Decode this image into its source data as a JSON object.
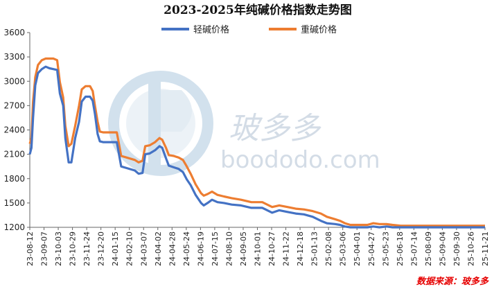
{
  "chart_data": {
    "type": "line",
    "title": "2023-2025年纯碱价格指数走势图",
    "ylim": [
      1200,
      3600
    ],
    "yticks": [
      1200,
      1500,
      1800,
      2100,
      2400,
      2700,
      3000,
      3300,
      3600
    ],
    "x_tick_labels": [
      "23-08-12",
      "23-09-07",
      "23-10-03",
      "23-10-29",
      "23-11-24",
      "23-12-20",
      "24-01-15",
      "24-02-10",
      "24-03-07",
      "24-04-02",
      "24-04-28",
      "24-05-24",
      "24-06-19",
      "24-07-15",
      "24-08-10",
      "24-09-05",
      "24-10-01",
      "24-10-27",
      "24-11-22",
      "24-12-18",
      "25-01-13",
      "25-02-08",
      "25-03-06",
      "25-04-01",
      "25-04-27",
      "25-05-23",
      "25-06-18",
      "25-07-14",
      "25-08-09",
      "25-09-04",
      "25-09-30",
      "25-10-26",
      "25-11-21"
    ],
    "x_tick_step_days": 26,
    "x_start": "2023-08-12",
    "x_end": "2025-11-21",
    "legend_position": "top-center",
    "grid": false,
    "series": [
      {
        "name": "轻碱价格",
        "color": "#4472c4",
        "points": [
          [
            "2023-08-12",
            2100
          ],
          [
            "2023-08-15",
            2180
          ],
          [
            "2023-08-18",
            2550
          ],
          [
            "2023-08-22",
            2950
          ],
          [
            "2023-08-27",
            3100
          ],
          [
            "2023-09-03",
            3150
          ],
          [
            "2023-09-10",
            3180
          ],
          [
            "2023-09-17",
            3160
          ],
          [
            "2023-09-24",
            3150
          ],
          [
            "2023-10-01",
            3140
          ],
          [
            "2023-10-06",
            2850
          ],
          [
            "2023-10-12",
            2700
          ],
          [
            "2023-10-16",
            2300
          ],
          [
            "2023-10-22",
            2000
          ],
          [
            "2023-10-27",
            2000
          ],
          [
            "2023-11-03",
            2300
          ],
          [
            "2023-11-10",
            2500
          ],
          [
            "2023-11-15",
            2750
          ],
          [
            "2023-11-22",
            2810
          ],
          [
            "2023-11-30",
            2810
          ],
          [
            "2023-12-05",
            2760
          ],
          [
            "2023-12-09",
            2600
          ],
          [
            "2023-12-14",
            2350
          ],
          [
            "2023-12-18",
            2260
          ],
          [
            "2023-12-24",
            2250
          ],
          [
            "2024-01-05",
            2250
          ],
          [
            "2024-01-18",
            2250
          ],
          [
            "2024-01-26",
            1950
          ],
          [
            "2024-02-05",
            1930
          ],
          [
            "2024-02-20",
            1900
          ],
          [
            "2024-02-27",
            1860
          ],
          [
            "2024-03-05",
            1870
          ],
          [
            "2024-03-10",
            2100
          ],
          [
            "2024-03-18",
            2110
          ],
          [
            "2024-03-28",
            2150
          ],
          [
            "2024-04-05",
            2200
          ],
          [
            "2024-04-10",
            2180
          ],
          [
            "2024-04-17",
            2050
          ],
          [
            "2024-04-22",
            1960
          ],
          [
            "2024-05-01",
            1940
          ],
          [
            "2024-05-10",
            1920
          ],
          [
            "2024-05-18",
            1880
          ],
          [
            "2024-05-25",
            1790
          ],
          [
            "2024-06-01",
            1720
          ],
          [
            "2024-06-10",
            1600
          ],
          [
            "2024-06-20",
            1500
          ],
          [
            "2024-06-25",
            1470
          ],
          [
            "2024-07-02",
            1500
          ],
          [
            "2024-07-10",
            1540
          ],
          [
            "2024-07-20",
            1510
          ],
          [
            "2024-08-01",
            1500
          ],
          [
            "2024-08-15",
            1480
          ],
          [
            "2024-09-01",
            1470
          ],
          [
            "2024-09-20",
            1440
          ],
          [
            "2024-10-10",
            1440
          ],
          [
            "2024-10-28",
            1380
          ],
          [
            "2024-11-10",
            1410
          ],
          [
            "2024-11-25",
            1390
          ],
          [
            "2024-12-10",
            1370
          ],
          [
            "2024-12-25",
            1360
          ],
          [
            "2025-01-10",
            1330
          ],
          [
            "2025-01-25",
            1280
          ],
          [
            "2025-02-05",
            1250
          ],
          [
            "2025-02-20",
            1240
          ],
          [
            "2025-03-01",
            1230
          ],
          [
            "2025-03-10",
            1210
          ],
          [
            "2025-03-20",
            1200
          ],
          [
            "2025-04-05",
            1200
          ],
          [
            "2025-04-20",
            1200
          ],
          [
            "2025-05-01",
            1210
          ],
          [
            "2025-05-12",
            1200
          ],
          [
            "2025-05-25",
            1210
          ],
          [
            "2025-06-05",
            1200
          ],
          [
            "2025-06-20",
            1200
          ],
          [
            "2025-07-01",
            1200
          ],
          [
            "2025-07-10",
            1200
          ],
          [
            "2025-07-20",
            1200
          ],
          [
            "2025-08-01",
            1200
          ],
          [
            "2025-08-15",
            1200
          ],
          [
            "2025-09-01",
            1200
          ],
          [
            "2025-09-15",
            1200
          ],
          [
            "2025-10-01",
            1200
          ],
          [
            "2025-10-20",
            1200
          ],
          [
            "2025-11-05",
            1200
          ],
          [
            "2025-11-21",
            1200
          ]
        ]
      },
      {
        "name": "重碱价格",
        "color": "#ed7d31",
        "points": [
          [
            "2023-08-12",
            2230
          ],
          [
            "2023-08-15",
            2300
          ],
          [
            "2023-08-18",
            2750
          ],
          [
            "2023-08-22",
            3050
          ],
          [
            "2023-08-27",
            3200
          ],
          [
            "2023-09-03",
            3260
          ],
          [
            "2023-09-10",
            3280
          ],
          [
            "2023-09-17",
            3280
          ],
          [
            "2023-09-24",
            3280
          ],
          [
            "2023-10-01",
            3260
          ],
          [
            "2023-10-06",
            2990
          ],
          [
            "2023-10-12",
            2800
          ],
          [
            "2023-10-16",
            2450
          ],
          [
            "2023-10-22",
            2200
          ],
          [
            "2023-10-27",
            2230
          ],
          [
            "2023-11-03",
            2450
          ],
          [
            "2023-11-10",
            2700
          ],
          [
            "2023-11-15",
            2900
          ],
          [
            "2023-11-22",
            2940
          ],
          [
            "2023-11-30",
            2940
          ],
          [
            "2023-12-05",
            2880
          ],
          [
            "2023-12-09",
            2700
          ],
          [
            "2023-12-14",
            2500
          ],
          [
            "2023-12-18",
            2380
          ],
          [
            "2023-12-24",
            2370
          ],
          [
            "2024-01-05",
            2370
          ],
          [
            "2024-01-18",
            2370
          ],
          [
            "2024-01-26",
            2080
          ],
          [
            "2024-02-05",
            2060
          ],
          [
            "2024-02-20",
            2030
          ],
          [
            "2024-02-27",
            2000
          ],
          [
            "2024-03-05",
            2020
          ],
          [
            "2024-03-10",
            2200
          ],
          [
            "2024-03-18",
            2210
          ],
          [
            "2024-03-28",
            2250
          ],
          [
            "2024-04-05",
            2300
          ],
          [
            "2024-04-10",
            2280
          ],
          [
            "2024-04-17",
            2180
          ],
          [
            "2024-04-22",
            2090
          ],
          [
            "2024-05-01",
            2080
          ],
          [
            "2024-05-10",
            2060
          ],
          [
            "2024-05-18",
            2030
          ],
          [
            "2024-05-25",
            1950
          ],
          [
            "2024-06-01",
            1860
          ],
          [
            "2024-06-10",
            1730
          ],
          [
            "2024-06-20",
            1620
          ],
          [
            "2024-06-25",
            1590
          ],
          [
            "2024-07-02",
            1610
          ],
          [
            "2024-07-10",
            1640
          ],
          [
            "2024-07-20",
            1600
          ],
          [
            "2024-08-01",
            1580
          ],
          [
            "2024-08-15",
            1560
          ],
          [
            "2024-09-01",
            1540
          ],
          [
            "2024-09-20",
            1510
          ],
          [
            "2024-10-10",
            1510
          ],
          [
            "2024-10-28",
            1450
          ],
          [
            "2024-11-10",
            1470
          ],
          [
            "2024-11-25",
            1450
          ],
          [
            "2024-12-10",
            1430
          ],
          [
            "2024-12-25",
            1420
          ],
          [
            "2025-01-10",
            1400
          ],
          [
            "2025-01-25",
            1370
          ],
          [
            "2025-02-05",
            1330
          ],
          [
            "2025-02-20",
            1300
          ],
          [
            "2025-03-01",
            1280
          ],
          [
            "2025-03-10",
            1250
          ],
          [
            "2025-03-20",
            1230
          ],
          [
            "2025-04-05",
            1230
          ],
          [
            "2025-04-20",
            1230
          ],
          [
            "2025-05-01",
            1250
          ],
          [
            "2025-05-12",
            1240
          ],
          [
            "2025-05-25",
            1240
          ],
          [
            "2025-06-05",
            1230
          ],
          [
            "2025-06-20",
            1220
          ],
          [
            "2025-07-01",
            1220
          ],
          [
            "2025-07-10",
            1220
          ],
          [
            "2025-07-20",
            1220
          ],
          [
            "2025-08-01",
            1220
          ],
          [
            "2025-08-15",
            1220
          ],
          [
            "2025-09-01",
            1220
          ],
          [
            "2025-09-15",
            1220
          ],
          [
            "2025-10-01",
            1220
          ],
          [
            "2025-10-20",
            1220
          ],
          [
            "2025-11-05",
            1220
          ],
          [
            "2025-11-21",
            1220
          ]
        ]
      }
    ],
    "source_note": "数据来源：玻多多"
  },
  "watermark": {
    "text_cn": "玻多多",
    "text_en": "boododo.com"
  }
}
